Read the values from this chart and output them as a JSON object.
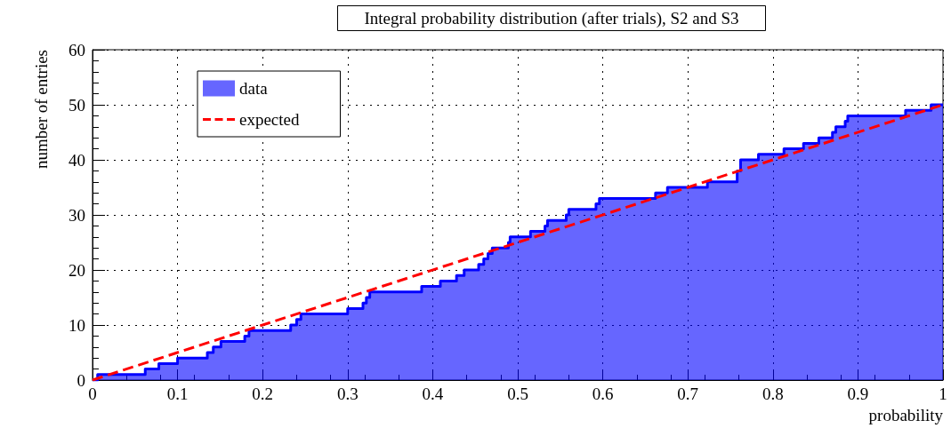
{
  "chart_data": {
    "type": "step",
    "title": "Integral probability distribution (after trials), S2 and S3",
    "xlabel": "probability",
    "ylabel": "number of entries",
    "xlim": [
      0,
      1
    ],
    "xticks": [
      0,
      0.1,
      0.2,
      0.3,
      0.4,
      0.5,
      0.6,
      0.7,
      0.8,
      0.9,
      1
    ],
    "ylim": [
      0,
      60
    ],
    "yticks": [
      0,
      10,
      20,
      30,
      40,
      50,
      60
    ],
    "grid": true,
    "legend": "top left",
    "marker": "none",
    "series": [
      {
        "name": "data",
        "color": "#0000ff",
        "x": [
          0,
          0.006,
          0.062,
          0.078,
          0.1,
          0.135,
          0.142,
          0.151,
          0.179,
          0.184,
          0.233,
          0.24,
          0.245,
          0.3,
          0.318,
          0.322,
          0.326,
          0.387,
          0.409,
          0.428,
          0.437,
          0.454,
          0.46,
          0.465,
          0.47,
          0.489,
          0.491,
          0.515,
          0.532,
          0.535,
          0.557,
          0.56,
          0.592,
          0.596,
          0.662,
          0.676,
          0.723,
          0.758,
          0.762,
          0.783,
          0.813,
          0.836,
          0.854,
          0.87,
          0.874,
          0.885,
          0.888,
          0.956,
          0.986,
          1
        ],
        "values": [
          0,
          1,
          2,
          3,
          4,
          5,
          6,
          7,
          8,
          9,
          10,
          11,
          12,
          13,
          14,
          15,
          16,
          17,
          18,
          19,
          20,
          21,
          22,
          23,
          24,
          25,
          26,
          27,
          28,
          29,
          30,
          31,
          32,
          33,
          34,
          35,
          36,
          38,
          40,
          41,
          42,
          43,
          44,
          45,
          46,
          47,
          48,
          49,
          50,
          50
        ]
      },
      {
        "name": "expected",
        "type": "line",
        "color": "#ff0000",
        "line_style": "dashed",
        "x": [
          0,
          1
        ],
        "values": [
          0,
          50
        ]
      }
    ]
  }
}
